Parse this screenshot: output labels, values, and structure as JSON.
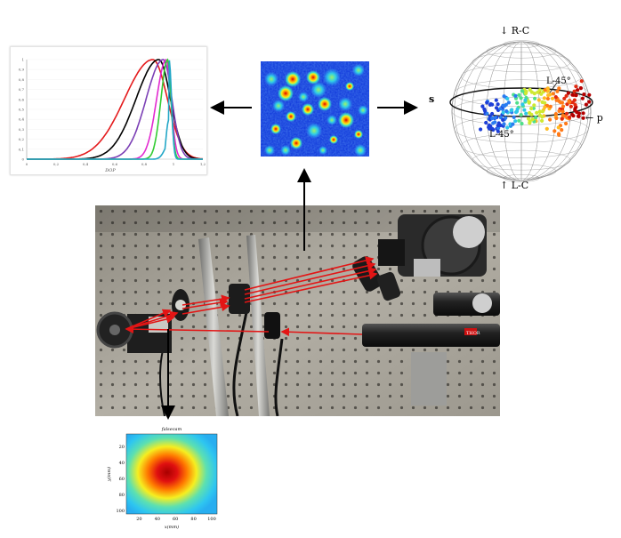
{
  "plot": {
    "y_ticks": [
      "0",
      "0,1",
      "0,2",
      "0,3",
      "0,4",
      "0,5",
      "0,6",
      "0,7",
      "0,8",
      "0,9",
      "1"
    ],
    "x_ticks": [
      "0",
      "0,2",
      "0,4",
      "0,6",
      "0,8",
      "1",
      "1,2"
    ],
    "x_label": "DOP",
    "series_colors": [
      "#e41a1c",
      "#000000",
      "#7b3fb5",
      "#e22ad0",
      "#33cc33",
      "#23a7c7"
    ]
  },
  "sphere": {
    "label_top": "↓ R-C",
    "label_bottom": "↑ L-C",
    "label_right": "← p",
    "label_left": "s",
    "label_l45": "L-45°",
    "label_lm45": "L-45°"
  },
  "beam_profile": {
    "title": "falsecam",
    "x_label": "x(mm)",
    "y_label": "y(mm)",
    "x_ticks": [
      "20",
      "40",
      "60",
      "80",
      "100"
    ],
    "y_ticks": [
      "20",
      "40",
      "60",
      "80",
      "100"
    ]
  },
  "photo": {
    "label_thor": "THOR"
  },
  "colors": {
    "laser_red": "#e31515",
    "arrow_black": "#000000"
  }
}
